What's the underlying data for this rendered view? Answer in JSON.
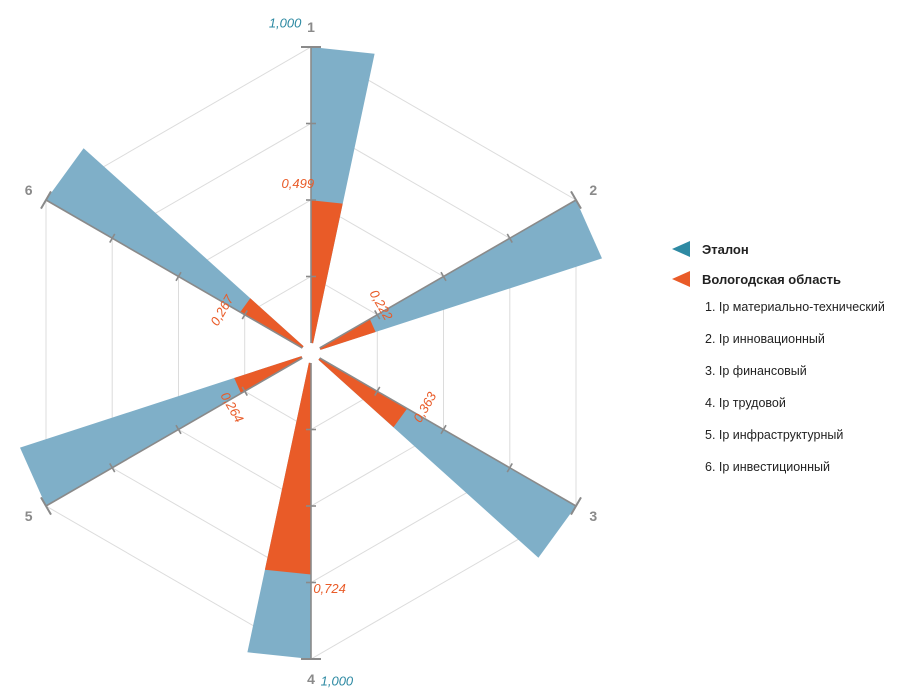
{
  "chart_data": {
    "type": "radar-sector",
    "axes": [
      "1",
      "2",
      "3",
      "4",
      "5",
      "6"
    ],
    "rmax": 1.0,
    "series": [
      {
        "name": "Эталон",
        "color": "#7fafc8",
        "label_color": "#2e8aa3",
        "values": [
          1.0,
          1.0,
          1.0,
          1.0,
          1.0,
          1.0
        ],
        "labels": [
          "1,000",
          "",
          "",
          "1,000",
          "",
          ""
        ]
      },
      {
        "name": "Вологодская область",
        "color": "#e95b28",
        "label_color": "#e95b28",
        "values": [
          0.499,
          0.222,
          0.363,
          0.724,
          0.264,
          0.267
        ],
        "labels": [
          "0,499",
          "0,222",
          "0,363",
          "0,724",
          "0,264",
          "0,267"
        ]
      }
    ],
    "legend_items": [
      "1. Ip материально-технический",
      "2. Ip инновационный",
      "3. Ip финансовый",
      "4. Ip трудовой",
      "5. Ip инфраструктурный",
      "6. Ip инвестиционный"
    ],
    "legend_markers": {
      "Эталон": "#2e8aa3",
      "Вологодская область": "#e95b28"
    },
    "grid": true
  }
}
